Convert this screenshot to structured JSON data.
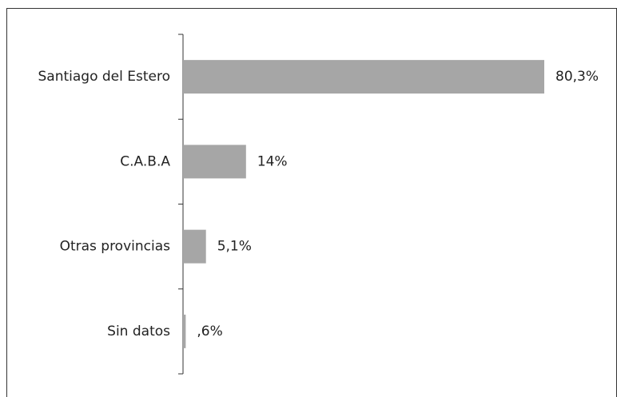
{
  "chart_data": {
    "type": "bar",
    "orientation": "horizontal",
    "categories": [
      "Santiago del Estero",
      "C.A.B.A",
      "Otras provincias",
      "Sin datos"
    ],
    "values": [
      80.3,
      14,
      5.1,
      0.6
    ],
    "value_labels": [
      "80,3%",
      "14%",
      "5,1%",
      ",6%"
    ],
    "color": "#a6a6a6"
  }
}
